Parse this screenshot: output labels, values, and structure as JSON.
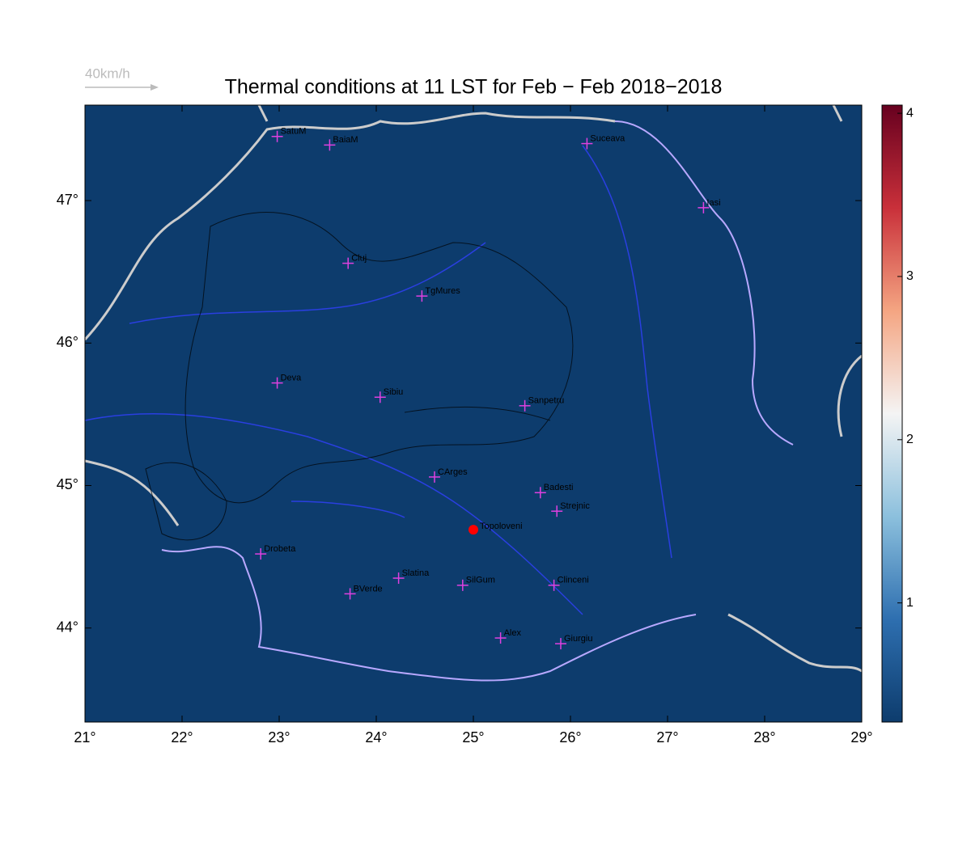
{
  "chart_data": {
    "type": "map",
    "title": "Thermal conditions at 11 LST for Feb − Feb  2018−2018",
    "scale_label": "40km/h",
    "field_color": "#0d3c6d",
    "xlim": [
      21,
      29
    ],
    "ylim": [
      43.34,
      47.67
    ],
    "xticks": [
      {
        "value": 21,
        "label": "21°"
      },
      {
        "value": 22,
        "label": "22°"
      },
      {
        "value": 23,
        "label": "23°"
      },
      {
        "value": 24,
        "label": "24°"
      },
      {
        "value": 25,
        "label": "25°"
      },
      {
        "value": 26,
        "label": "26°"
      },
      {
        "value": 27,
        "label": "27°"
      },
      {
        "value": 28,
        "label": "28°"
      },
      {
        "value": 29,
        "label": "29°"
      }
    ],
    "yticks": [
      {
        "value": 44,
        "label": "44°"
      },
      {
        "value": 45,
        "label": "45°"
      },
      {
        "value": 46,
        "label": "46°"
      },
      {
        "value": 47,
        "label": "47°"
      }
    ],
    "cities": [
      {
        "name": "SatuM",
        "lon": 22.98,
        "lat": 47.45
      },
      {
        "name": "BaiaM",
        "lon": 23.52,
        "lat": 47.39
      },
      {
        "name": "Suceava",
        "lon": 26.17,
        "lat": 47.4
      },
      {
        "name": "Iasi",
        "lon": 27.37,
        "lat": 46.95
      },
      {
        "name": "Cluj",
        "lon": 23.71,
        "lat": 46.56
      },
      {
        "name": "TgMures",
        "lon": 24.47,
        "lat": 46.33
      },
      {
        "name": "Deva",
        "lon": 22.98,
        "lat": 45.72
      },
      {
        "name": "Sibiu",
        "lon": 24.04,
        "lat": 45.62
      },
      {
        "name": "Sanpetru",
        "lon": 25.53,
        "lat": 45.56
      },
      {
        "name": "CArges",
        "lon": 24.6,
        "lat": 45.06
      },
      {
        "name": "Badesti",
        "lon": 25.69,
        "lat": 44.95
      },
      {
        "name": "Strejnic",
        "lon": 25.86,
        "lat": 44.82
      },
      {
        "name": "Drobeta",
        "lon": 22.81,
        "lat": 44.52
      },
      {
        "name": "Slatina",
        "lon": 24.23,
        "lat": 44.35
      },
      {
        "name": "SilGum",
        "lon": 24.89,
        "lat": 44.3
      },
      {
        "name": "Clinceni",
        "lon": 25.83,
        "lat": 44.3
      },
      {
        "name": "BVerde",
        "lon": 23.73,
        "lat": 44.24
      },
      {
        "name": "Alex",
        "lon": 25.28,
        "lat": 43.93
      },
      {
        "name": "Giurgiu",
        "lon": 25.9,
        "lat": 43.89
      }
    ],
    "station": {
      "name": "Topoloveni",
      "lon": 25.0,
      "lat": 44.69,
      "color": "#ff0000"
    },
    "colorbar": {
      "lim": [
        0.27,
        4.05
      ],
      "ticks": [
        1,
        2,
        3,
        4
      ],
      "colors": [
        "#0d3c6d",
        "#2e6fb0",
        "#8cc0dd",
        "#f4f4f4",
        "#f4a582",
        "#c9303a",
        "#67001f"
      ]
    }
  }
}
